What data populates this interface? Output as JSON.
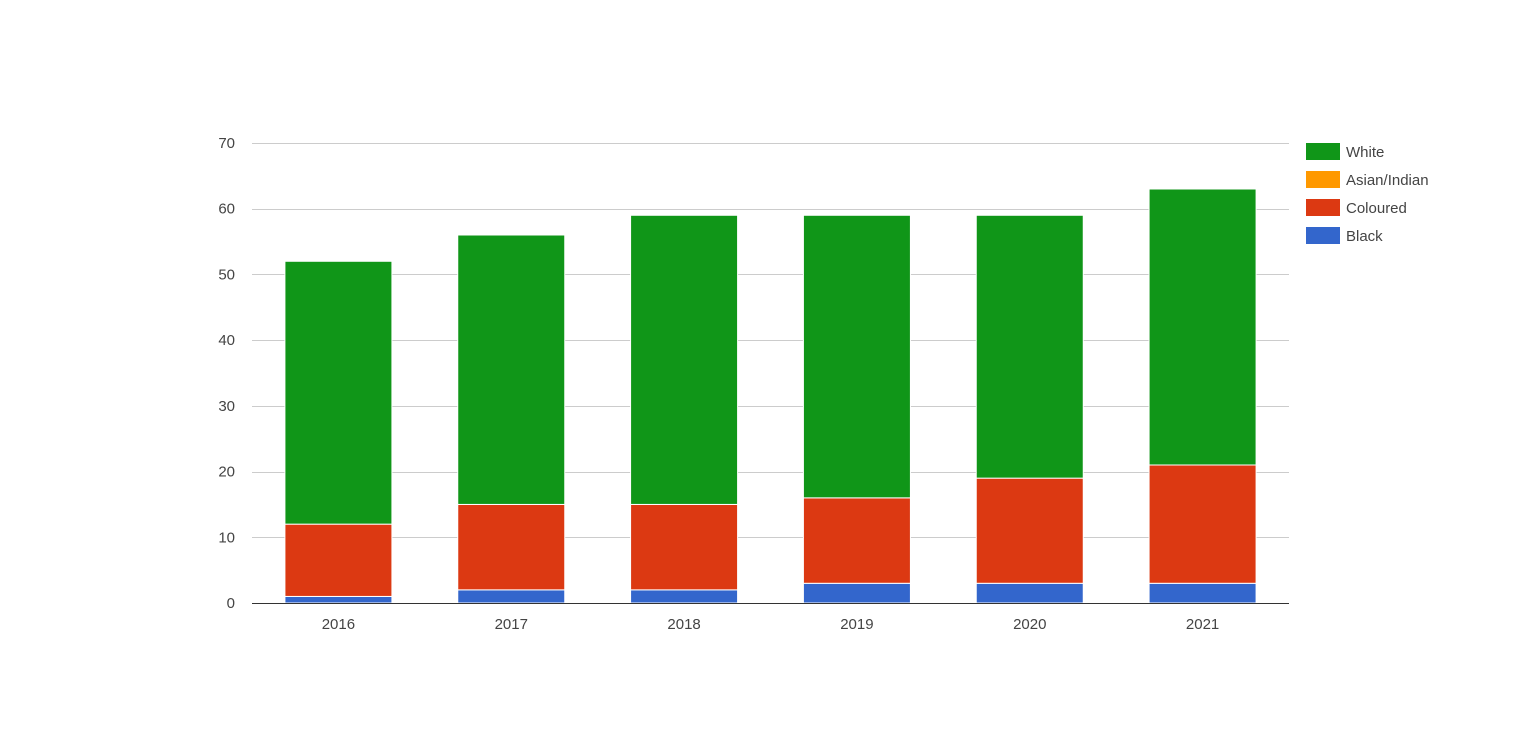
{
  "chart_data": {
    "type": "bar",
    "stacked": true,
    "title": "",
    "xlabel": "",
    "ylabel": "",
    "categories": [
      "2016",
      "2017",
      "2018",
      "2019",
      "2020",
      "2021"
    ],
    "series": [
      {
        "name": "Black",
        "color": "#3366cc",
        "values": [
          1,
          2,
          2,
          3,
          3,
          3
        ]
      },
      {
        "name": "Coloured",
        "color": "#dc3912",
        "values": [
          11,
          13,
          13,
          13,
          16,
          18
        ]
      },
      {
        "name": "Asian/Indian",
        "color": "#ff9900",
        "values": [
          0,
          0,
          0,
          0,
          0,
          0
        ]
      },
      {
        "name": "White",
        "color": "#109618",
        "values": [
          40,
          41,
          44,
          43,
          40,
          42
        ]
      }
    ],
    "legend_order": [
      "White",
      "Asian/Indian",
      "Coloured",
      "Black"
    ],
    "ylim": [
      0,
      70
    ],
    "yticks": [
      "0",
      "10",
      "20",
      "30",
      "40",
      "50",
      "60",
      "70"
    ],
    "grid": true,
    "legend_position": "right"
  }
}
